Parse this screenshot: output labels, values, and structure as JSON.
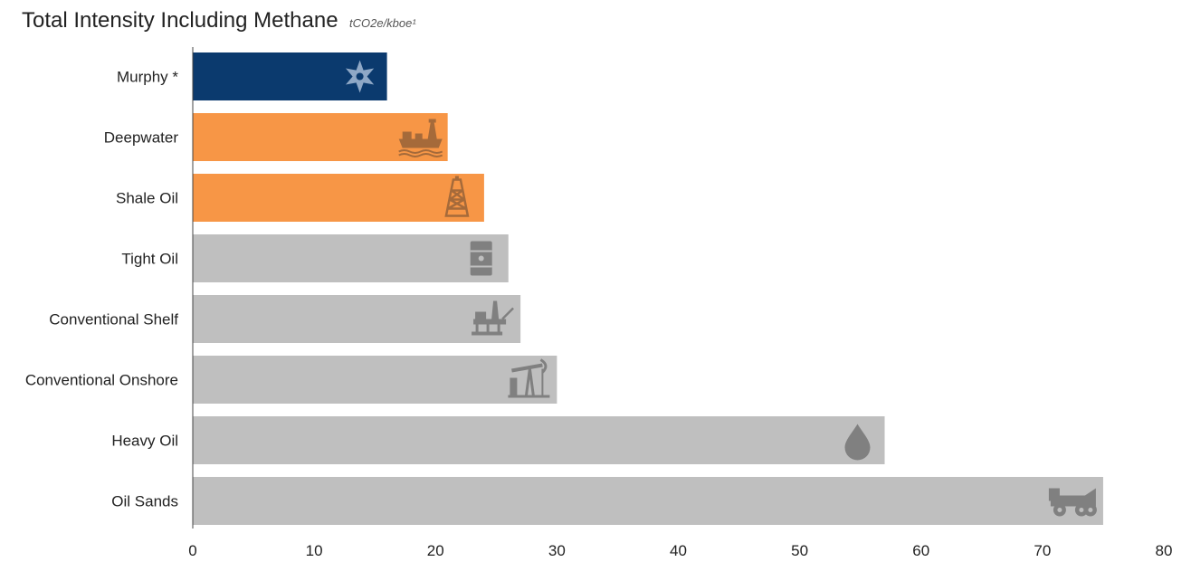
{
  "chart_data": {
    "type": "bar",
    "orientation": "horizontal",
    "title": "Total Intensity Including Methane",
    "unit_label": "tCO2e/kboe¹",
    "xlabel": "",
    "ylabel": "",
    "xlim": [
      0,
      80
    ],
    "x_ticks": [
      0,
      10,
      20,
      30,
      40,
      50,
      60,
      70,
      80
    ],
    "grid": false,
    "legend": "none",
    "categories": [
      "Murphy *",
      "Deepwater",
      "Shale Oil",
      "Tight Oil",
      "Conventional Shelf",
      "Conventional Onshore",
      "Heavy Oil",
      "Oil Sands"
    ],
    "values": [
      16,
      21,
      24,
      26,
      27,
      30,
      57,
      75
    ],
    "bar_colors": [
      "#0b3a6e",
      "#f79646",
      "#f79646",
      "#bfbfbf",
      "#bfbfbf",
      "#bfbfbf",
      "#bfbfbf",
      "#bfbfbf"
    ],
    "icon_colors": [
      "#8fa8c6",
      "#a56a3a",
      "#a56a3a",
      "#808080",
      "#808080",
      "#808080",
      "#808080",
      "#808080"
    ],
    "icons": [
      "star-icon",
      "ship-icon",
      "derrick-icon",
      "barrel-icon",
      "offshore-platform-icon",
      "pumpjack-icon",
      "drop-icon",
      "mining-truck-icon"
    ]
  }
}
